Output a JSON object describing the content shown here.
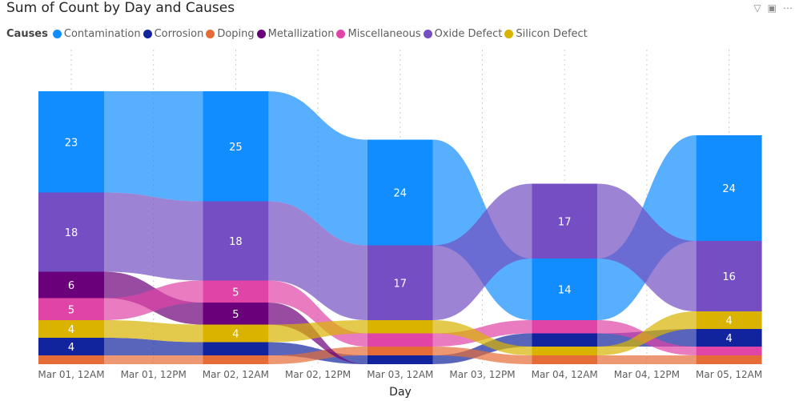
{
  "header": {
    "title": "Sum of Count by Day and Causes",
    "icons": [
      "filter-icon",
      "focus-mode-icon",
      "more-options-icon"
    ]
  },
  "chart_data": {
    "type": "ribbon",
    "title": "Sum of Count by Day and Causes",
    "xlabel": "Day",
    "legend_title": "Causes",
    "legend_position": "top-left",
    "x_ticks": [
      "Mar 01, 12AM",
      "Mar 01, 12PM",
      "Mar 02, 12AM",
      "Mar 02, 12PM",
      "Mar 03, 12AM",
      "Mar 03, 12PM",
      "Mar 04, 12AM",
      "Mar 04, 12PM",
      "Mar 05, 12AM"
    ],
    "categories": [
      "Mar 01, 12AM",
      "Mar 02, 12AM",
      "Mar 03, 12AM",
      "Mar 04, 12AM",
      "Mar 05, 12AM"
    ],
    "series": [
      {
        "name": "Contamination",
        "color": "#118DFF",
        "values": [
          23,
          25,
          24,
          14,
          24
        ]
      },
      {
        "name": "Corrosion",
        "color": "#12239E",
        "values": [
          4,
          3,
          2,
          3,
          4
        ]
      },
      {
        "name": "Doping",
        "color": "#E66C37",
        "values": [
          2,
          2,
          2,
          2,
          2
        ]
      },
      {
        "name": "Metallization",
        "color": "#6B007B",
        "values": [
          6,
          5,
          0,
          0,
          0
        ]
      },
      {
        "name": "Miscellaneous",
        "color": "#E044A7",
        "values": [
          5,
          5,
          3,
          3,
          2
        ]
      },
      {
        "name": "Oxide Defect",
        "color": "#744EC2",
        "values": [
          18,
          18,
          17,
          17,
          16
        ]
      },
      {
        "name": "Silicon Defect",
        "color": "#D9B300",
        "values": [
          4,
          4,
          3,
          2,
          4
        ]
      }
    ]
  }
}
